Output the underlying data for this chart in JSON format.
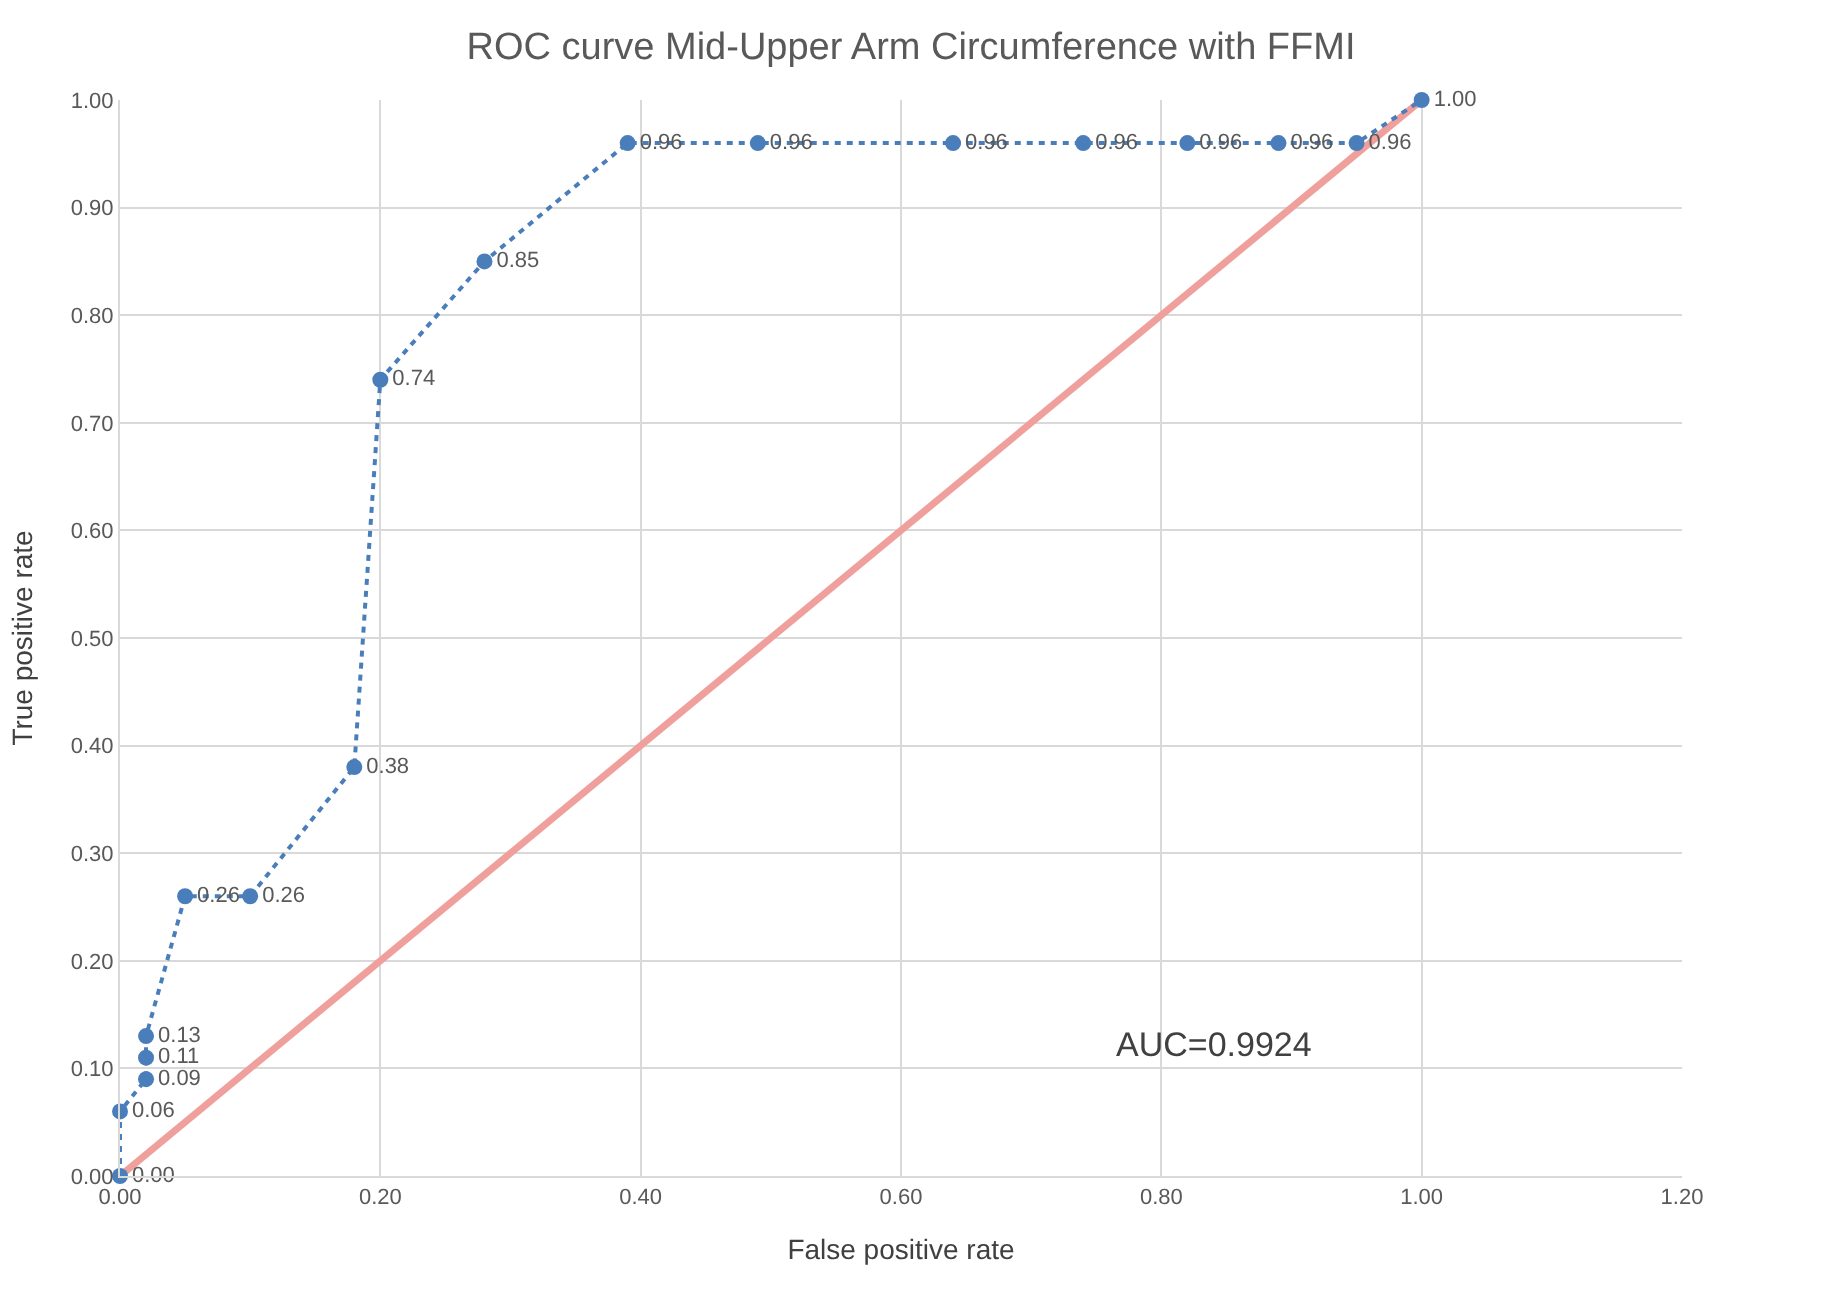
{
  "chart_data": {
    "type": "line",
    "title": "ROC curve Mid-Upper Arm Circumference with FFMI",
    "xlabel": "False positive rate",
    "ylabel": "True positive rate",
    "series": [
      {
        "color": "#4a7ebb",
        "marker": "circle",
        "line_style": "dotted",
        "x": [
          0,
          0,
          0.02,
          0.02,
          0.02,
          0.05,
          0.1,
          0.18,
          0.2,
          0.28,
          0.39,
          0.49,
          0.64,
          0.74,
          0.82,
          0.89,
          0.95,
          1.0
        ],
        "values": [
          0,
          0.06,
          0.09,
          0.11,
          0.13,
          0.26,
          0.26,
          0.38,
          0.74,
          0.85,
          0.96,
          0.96,
          0.96,
          0.96,
          0.96,
          0.96,
          0.96,
          1.0
        ],
        "value_labels": [
          "0.00",
          "0.06",
          "0.09",
          "0.11",
          "0.13",
          "0.26",
          "0.26",
          "0.38",
          "0.74",
          "0.85",
          "0.96",
          "0.96",
          "0.96",
          "0.96",
          "0.96",
          "0.96",
          "0.96",
          "1.00"
        ]
      },
      {
        "type": "line",
        "color": "#f0a09c",
        "marker": "none",
        "line_style": "solid",
        "x": [
          0,
          1
        ],
        "values": [
          0,
          1
        ]
      }
    ],
    "annotations": [
      "AUC=0.9924"
    ],
    "xlim": [
      0,
      1.2
    ],
    "xticks": [
      {
        "value": 0,
        "label": "0.00"
      },
      {
        "value": 0.2,
        "label": "0.20"
      },
      {
        "value": 0.4,
        "label": "0.40"
      },
      {
        "value": 0.6,
        "label": "0.60"
      },
      {
        "value": 0.8,
        "label": "0.80"
      },
      {
        "value": 1.0,
        "label": "1.00"
      },
      {
        "value": 1.2,
        "label": "1.20"
      }
    ],
    "ylim": [
      0,
      1
    ],
    "yticks": [
      {
        "value": 0,
        "label": "0.00"
      },
      {
        "value": 0.1,
        "label": "0.10"
      },
      {
        "value": 0.2,
        "label": "0.20"
      },
      {
        "value": 0.3,
        "label": "0.30"
      },
      {
        "value": 0.4,
        "label": "0.40"
      },
      {
        "value": 0.5,
        "label": "0.50"
      },
      {
        "value": 0.6,
        "label": "0.60"
      },
      {
        "value": 0.7,
        "label": "0.70"
      },
      {
        "value": 0.8,
        "label": "0.80"
      },
      {
        "value": 0.9,
        "label": "0.90"
      },
      {
        "value": 1.0,
        "label": "1.00"
      }
    ],
    "grid": true
  }
}
